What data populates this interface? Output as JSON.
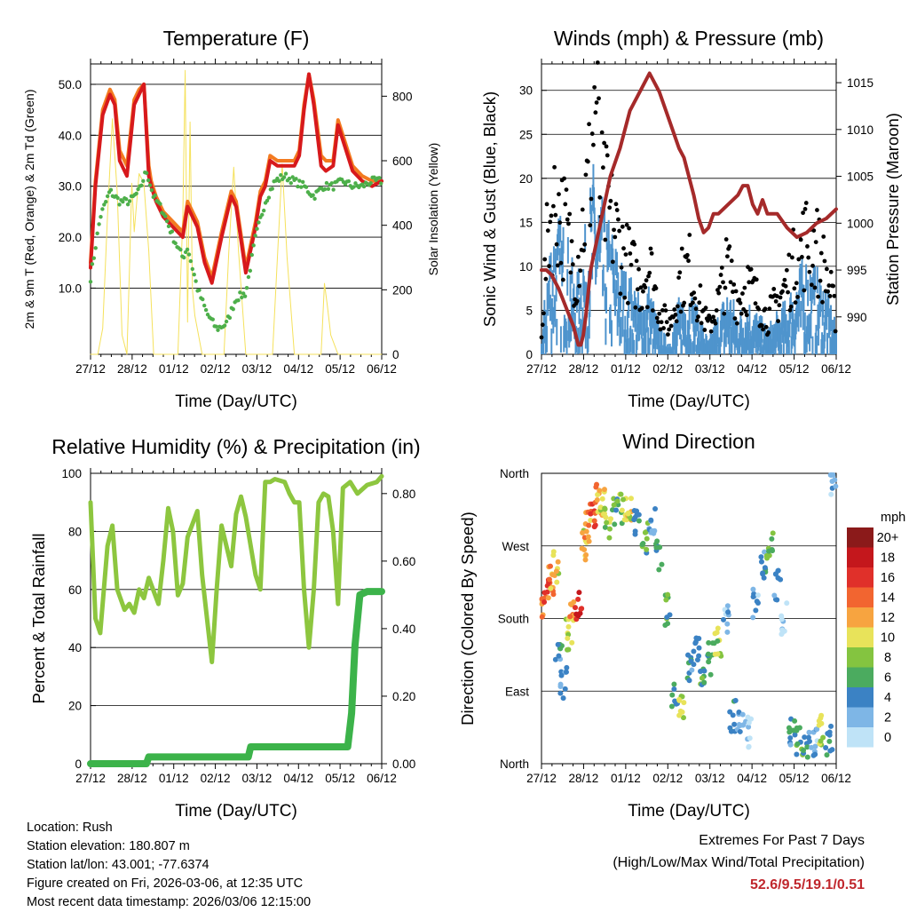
{
  "chart_data": [
    {
      "type": "line",
      "title": "Temperature (F)",
      "xlabel": "Time (Day/UTC)",
      "ylabel": "2m & 9m T (Red, Orange) & 2m Td (Green)",
      "y2label": "Solar Insolation (Yellow)",
      "x_ticks": [
        "27/12",
        "28/12",
        "01/12",
        "02/12",
        "03/12",
        "04/12",
        "05/12",
        "06/12"
      ],
      "ylim": [
        -3,
        54
      ],
      "y_ticks": [
        "10.0",
        "20.0",
        "30.0",
        "40.0",
        "50.0"
      ],
      "y2lim": [
        0,
        900
      ],
      "y2_ticks": [
        "0",
        "200",
        "400",
        "600",
        "800"
      ],
      "series": [
        {
          "name": "2m T",
          "color": "#d7191c",
          "x": [
            0,
            0.1,
            0.25,
            0.4,
            0.5,
            0.6,
            0.75,
            0.9,
            1.0,
            1.1,
            1.2,
            1.25,
            1.35,
            1.5,
            1.7,
            1.9,
            2.0,
            2.2,
            2.35,
            2.5,
            2.7,
            2.9,
            3.0,
            3.2,
            3.4,
            3.5,
            3.6,
            3.7,
            3.85,
            4.0,
            4.2,
            4.3,
            4.4,
            4.5,
            4.6,
            4.75,
            4.85,
            5.0,
            5.1,
            5.2,
            5.4,
            5.6,
            5.8,
            6.0
          ],
          "y": [
            14,
            30,
            44,
            48,
            46,
            35,
            32,
            46,
            48,
            50,
            32,
            30,
            27,
            24,
            22,
            20,
            26,
            22,
            15,
            11,
            20,
            28,
            26,
            13,
            22,
            28,
            30,
            35,
            34,
            34,
            34,
            36,
            45,
            52,
            46,
            34,
            33,
            34,
            42,
            39,
            33,
            31,
            30,
            31
          ]
        },
        {
          "name": "9m T",
          "color": "#f37b20",
          "x": [
            0,
            0.1,
            0.25,
            0.4,
            0.5,
            0.6,
            0.75,
            0.9,
            1.0,
            1.1,
            1.2,
            1.25,
            1.35,
            1.5,
            1.7,
            1.9,
            2.0,
            2.2,
            2.35,
            2.5,
            2.7,
            2.9,
            3.0,
            3.2,
            3.4,
            3.5,
            3.6,
            3.7,
            3.85,
            4.0,
            4.2,
            4.3,
            4.4,
            4.5,
            4.6,
            4.75,
            4.85,
            5.0,
            5.1,
            5.2,
            5.4,
            5.6,
            5.8,
            6.0
          ],
          "y": [
            15,
            31,
            45,
            49,
            47,
            37,
            34,
            47,
            49,
            50,
            34,
            31,
            28,
            25,
            23,
            21,
            27,
            23,
            16,
            12,
            21,
            29,
            27,
            14,
            23,
            29,
            31,
            36,
            35,
            35,
            35,
            37,
            46,
            52,
            47,
            36,
            35,
            35,
            43,
            40,
            34,
            32,
            31,
            31
          ]
        },
        {
          "name": "2m Td",
          "color": "#4daf4a",
          "x": [
            0,
            0.2,
            0.4,
            0.6,
            0.8,
            1.0,
            1.15,
            1.3,
            1.5,
            1.7,
            1.9,
            2.0,
            2.2,
            2.4,
            2.6,
            2.8,
            3.0,
            3.2,
            3.4,
            3.6,
            3.8,
            4.0,
            4.2,
            4.4,
            4.6,
            4.8,
            5.0,
            5.2,
            5.4,
            5.6,
            5.8,
            6.0
          ],
          "y": [
            12,
            24,
            29,
            27,
            27,
            29,
            33,
            28,
            25,
            20,
            16,
            18,
            10,
            5,
            2,
            3,
            8,
            9,
            20,
            27,
            31,
            32,
            31,
            30,
            28,
            30,
            30,
            31,
            30,
            30,
            31,
            31
          ]
        },
        {
          "name": "Solar Insolation",
          "color": "#f5e15c",
          "axis": "y2",
          "x": [
            0,
            0.15,
            0.25,
            0.35,
            0.45,
            0.55,
            0.65,
            0.75,
            0.8,
            0.85,
            0.9,
            1.0,
            1.1,
            1.2,
            1.3,
            1.5,
            1.6,
            1.8,
            1.9,
            1.95,
            2.0,
            2.05,
            2.1,
            2.15,
            2.3,
            2.6,
            2.75,
            2.85,
            2.95,
            3.05,
            3.2,
            3.6,
            3.75,
            3.85,
            3.95,
            4.05,
            4.2,
            4.6,
            4.75,
            4.82,
            4.88,
            4.95,
            5.1,
            6.0
          ],
          "y": [
            0,
            0,
            80,
            430,
            730,
            500,
            60,
            0,
            250,
            530,
            380,
            560,
            530,
            320,
            0,
            0,
            0,
            0,
            420,
            880,
            100,
            720,
            200,
            120,
            0,
            0,
            0,
            320,
            580,
            320,
            0,
            0,
            0,
            300,
            590,
            300,
            0,
            0,
            0,
            220,
            150,
            60,
            0,
            0
          ]
        }
      ]
    },
    {
      "type": "scatter+line",
      "title": "Winds (mph) & Pressure (mb)",
      "xlabel": "Time (Day/UTC)",
      "ylabel": "Sonic Wind & Gust (Blue, Black)",
      "y2label": "Station Pressure (Maroon)",
      "x_ticks": [
        "27/12",
        "28/12",
        "01/12",
        "02/12",
        "03/12",
        "04/12",
        "05/12",
        "06/12"
      ],
      "ylim": [
        0,
        33
      ],
      "y_ticks": [
        "0",
        "5",
        "10",
        "15",
        "20",
        "25",
        "30"
      ],
      "y2lim": [
        986,
        1017
      ],
      "y2_ticks": [
        "990",
        "995",
        "1000",
        "1005",
        "1010",
        "1015"
      ],
      "series": [
        {
          "name": "Sonic Wind",
          "color": "#4f94cd",
          "x": [
            0,
            0.15,
            0.3,
            0.5,
            0.7,
            0.9,
            1.0,
            1.1,
            1.2,
            1.3,
            1.5,
            1.7,
            1.9,
            2.0,
            2.2,
            2.4,
            2.6,
            2.8,
            3.0,
            3.2,
            3.4,
            3.6,
            3.8,
            4.0,
            4.2,
            4.4,
            4.6,
            4.8,
            5.0,
            5.2,
            5.4,
            5.6,
            5.8,
            6.0
          ],
          "y": [
            1,
            8,
            10,
            9,
            5,
            9,
            12,
            14,
            11,
            10,
            8,
            6,
            5,
            4,
            5,
            2,
            1,
            4,
            5,
            3,
            1,
            3,
            5,
            3,
            4,
            3,
            2,
            3,
            4,
            6,
            7,
            6,
            5,
            2
          ]
        },
        {
          "name": "Gust",
          "color": "#000000",
          "x": [
            0,
            0.15,
            0.3,
            0.5,
            0.7,
            0.9,
            1.0,
            1.1,
            1.2,
            1.3,
            1.5,
            1.7,
            1.9,
            2.0,
            2.2,
            2.4,
            2.6,
            2.8,
            3.0,
            3.2,
            3.4,
            3.6,
            3.8,
            4.0,
            4.2,
            4.4,
            4.6,
            4.8,
            5.0,
            5.2,
            5.4,
            5.6,
            5.8,
            6.0
          ],
          "y": [
            3,
            15,
            17,
            14,
            9,
            17,
            21,
            30,
            18,
            17,
            14,
            11,
            9,
            8,
            10,
            5,
            3,
            8,
            10,
            6,
            3,
            6,
            10,
            6,
            8,
            6,
            4,
            6,
            8,
            11,
            13,
            12,
            9,
            4
          ]
        },
        {
          "name": "Station Pressure",
          "color": "#a52a2a",
          "axis": "y2",
          "x": [
            0,
            0.1,
            0.2,
            0.35,
            0.5,
            0.65,
            0.75,
            0.8,
            0.85,
            0.9,
            1.0,
            1.2,
            1.4,
            1.6,
            1.8,
            2.0,
            2.2,
            2.4,
            2.6,
            2.8,
            2.9,
            3.0,
            3.1,
            3.2,
            3.3,
            3.4,
            3.5,
            3.6,
            3.8,
            4.0,
            4.1,
            4.2,
            4.3,
            4.4,
            4.5,
            4.6,
            4.8,
            5.0,
            5.2,
            5.4,
            5.6,
            5.8,
            6.0
          ],
          "y": [
            995,
            995,
            994.5,
            993,
            991,
            989,
            987,
            987,
            988,
            990,
            995,
            1000,
            1005,
            1008,
            1012,
            1014,
            1016,
            1014,
            1011,
            1008,
            1007,
            1005,
            1003,
            1000.5,
            999,
            999.5,
            1001,
            1001,
            1002,
            1003,
            1004,
            1004,
            1002,
            1001,
            1002.5,
            1001,
            1001,
            999.5,
            998.5,
            999,
            1000,
            1000.5,
            1001.5
          ]
        }
      ]
    },
    {
      "type": "line",
      "title": "Relative Humidity (%) & Precipitation (in)",
      "xlabel": "Time (Day/UTC)",
      "ylabel": "Percent & Total Rainfall",
      "x_ticks": [
        "27/12",
        "28/12",
        "01/12",
        "02/12",
        "03/12",
        "04/12",
        "05/12",
        "06/12"
      ],
      "ylim": [
        0,
        100
      ],
      "y_ticks": [
        "0",
        "20",
        "40",
        "60",
        "80",
        "100"
      ],
      "y2lim": [
        0,
        0.86
      ],
      "y2_ticks": [
        "0.00",
        "0.20",
        "0.40",
        "0.60",
        "0.80"
      ],
      "series": [
        {
          "name": "Relative Humidity",
          "color": "#8dc63f",
          "x": [
            0,
            0.1,
            0.2,
            0.35,
            0.45,
            0.55,
            0.7,
            0.8,
            0.9,
            1.0,
            1.1,
            1.2,
            1.4,
            1.5,
            1.6,
            1.7,
            1.8,
            1.9,
            2.0,
            2.2,
            2.3,
            2.5,
            2.6,
            2.7,
            2.9,
            3.0,
            3.1,
            3.2,
            3.4,
            3.5,
            3.6,
            3.7,
            3.8,
            4.0,
            4.1,
            4.2,
            4.3,
            4.4,
            4.5,
            4.6,
            4.7,
            4.8,
            4.9,
            5.0,
            5.1,
            5.2,
            5.35,
            5.5,
            5.7,
            5.9,
            6.0
          ],
          "y": [
            90,
            50,
            45,
            75,
            82,
            60,
            53,
            55,
            52,
            60,
            57,
            64,
            55,
            70,
            88,
            80,
            58,
            62,
            78,
            87,
            65,
            35,
            60,
            82,
            68,
            86,
            92,
            85,
            65,
            60,
            97,
            97,
            98,
            97,
            93,
            90,
            90,
            60,
            40,
            60,
            90,
            93,
            92,
            80,
            55,
            95,
            97,
            93,
            96,
            97,
            99
          ]
        },
        {
          "name": "Total Rainfall",
          "color": "#3cb34a",
          "axis": "y2",
          "x": [
            0,
            1.15,
            1.2,
            3.25,
            3.3,
            5.3,
            5.38,
            5.45,
            5.55,
            5.7,
            6.0
          ],
          "y": [
            0,
            0,
            0.02,
            0.02,
            0.05,
            0.05,
            0.15,
            0.35,
            0.5,
            0.51,
            0.51
          ]
        }
      ]
    },
    {
      "type": "scatter",
      "title": "Wind Direction",
      "xlabel": "Time (Day/UTC)",
      "ylabel": "Direction (Colored By Speed)",
      "x_ticks": [
        "27/12",
        "28/12",
        "01/12",
        "02/12",
        "03/12",
        "04/12",
        "05/12",
        "06/12"
      ],
      "y_ticks": [
        "North",
        "East",
        "South",
        "West",
        "North"
      ],
      "ylim": [
        0,
        360
      ],
      "colorbar": {
        "title": "mph",
        "labels": [
          "20+",
          "18",
          "16",
          "14",
          "12",
          "10",
          "8",
          "6",
          "4",
          "2",
          "0"
        ],
        "colors": [
          "#8b1a1a",
          "#c4171c",
          "#e0302a",
          "#f26530",
          "#f7a440",
          "#e8e35a",
          "#84c440",
          "#4bab5f",
          "#3b82c4",
          "#7eb6e6",
          "#bfe3f7"
        ]
      },
      "series": [
        {
          "name": "Wind Direction",
          "x": [
            0.05,
            0.12,
            0.2,
            0.28,
            0.35,
            0.45,
            0.55,
            0.65,
            0.75,
            0.85,
            0.95,
            1.05,
            1.15,
            1.25,
            1.35,
            1.5,
            1.65,
            1.8,
            1.95,
            2.1,
            2.25,
            2.4,
            2.55,
            2.7,
            2.85,
            3.0,
            3.15,
            3.3,
            3.45,
            3.6,
            3.75,
            3.9,
            4.05,
            4.2,
            4.35,
            4.5,
            4.65,
            4.8,
            4.95,
            5.1,
            5.25,
            5.4,
            5.55,
            5.7,
            5.85,
            5.95
          ],
          "y": [
            200,
            215,
            230,
            245,
            130,
            100,
            160,
            185,
            195,
            270,
            295,
            310,
            330,
            320,
            300,
            310,
            315,
            320,
            300,
            280,
            300,
            260,
            190,
            80,
            70,
            120,
            140,
            100,
            130,
            150,
            180,
            60,
            50,
            40,
            200,
            250,
            270,
            220,
            180,
            40,
            30,
            20,
            25,
            40,
            30,
            350
          ],
          "speed": [
            12,
            14,
            12,
            10,
            4,
            3,
            8,
            12,
            16,
            10,
            12,
            14,
            12,
            10,
            8,
            6,
            8,
            10,
            4,
            6,
            2,
            4,
            6,
            4,
            8,
            4,
            2,
            6,
            4,
            8,
            2,
            4,
            2,
            0,
            2,
            4,
            6,
            2,
            0,
            4,
            6,
            4,
            2,
            8,
            4,
            2
          ]
        }
      ]
    }
  ],
  "footer": {
    "location": "Location: Rush",
    "elevation": "Station elevation: 180.807 m",
    "latlon": "Station lat/lon: 43.001; -77.6374",
    "created": "Figure created on Fri, 2026-03-06, at 12:35 UTC",
    "recent": "Most recent data timestamp: 2026/03/06 12:15:00"
  },
  "extremes": {
    "title": "Extremes For Past 7 Days",
    "subtitle": "(High/Low/Max Wind/Total Precipitation)",
    "values": "52.6/9.5/19.1/0.51"
  }
}
